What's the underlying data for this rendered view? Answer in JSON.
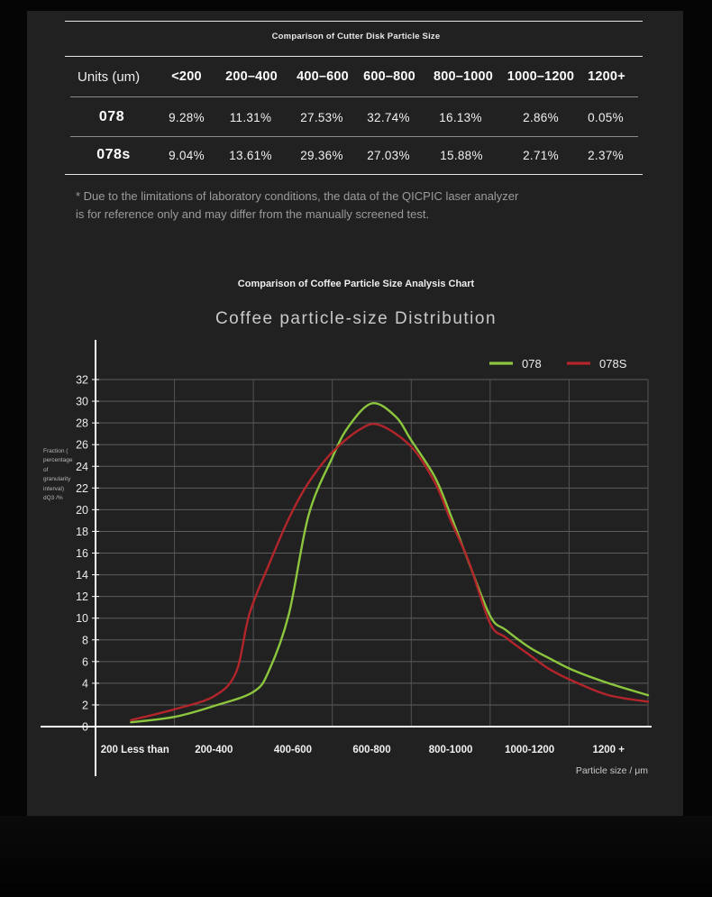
{
  "page": {
    "bg": "#050505",
    "panel_bg": "#212121"
  },
  "table": {
    "caption": "Comparison of Cutter Disk Particle Size",
    "header": [
      "Units (um)",
      "<200",
      "200–400",
      "400–600",
      "600–800",
      "800–1000",
      "1000–1200",
      "1200+"
    ],
    "rows": [
      {
        "label": "078",
        "values": [
          "9.28%",
          "11.31%",
          "27.53%",
          "32.74%",
          "16.13%",
          "2.86%",
          "0.05%"
        ]
      },
      {
        "label": "078s",
        "values": [
          "9.04%",
          "13.61%",
          "29.36%",
          "27.03%",
          "15.88%",
          "2.71%",
          "2.37%"
        ]
      }
    ],
    "footnote": "* Due to the limitations of laboratory conditions, the data of the QICPIC laser analyzer is for reference only and may differ from the manually screened test."
  },
  "chart": {
    "caption": "Comparison of Coffee Particle Size Analysis Chart",
    "title": "Coffee particle-size Distribution",
    "y_axis_note_lines": [
      "Fraction (",
      "percentage",
      "of",
      "granularity",
      "interval)",
      "dQ3 /%"
    ]
  },
  "chart_data": {
    "type": "line",
    "title": "Coffee particle-size Distribution",
    "xlabel": "Particle size / μm",
    "ylabel": "Fraction ( percentage of granularity interval) dQ3 /%",
    "categories": [
      "200 Less than",
      "200-400",
      "400-600",
      "600-800",
      "800-1000",
      "1000-1200",
      "1200 +"
    ],
    "ylim": [
      0,
      32
    ],
    "ytick_step": 2,
    "grid": true,
    "legend_position": "top-right",
    "axis_color": "#fafafa",
    "grid_color_h": "#5e5e5e",
    "grid_color_v": "#535353",
    "series": [
      {
        "name": "078",
        "color": "#8CC63E",
        "points": [
          [
            0.45,
            0.4
          ],
          [
            1.0,
            0.9
          ],
          [
            1.5,
            1.9
          ],
          [
            2.0,
            3.2
          ],
          [
            2.2,
            5.2
          ],
          [
            2.45,
            10.4
          ],
          [
            2.7,
            19.5
          ],
          [
            3.0,
            24.8
          ],
          [
            3.2,
            27.6
          ],
          [
            3.5,
            29.8
          ],
          [
            3.8,
            28.6
          ],
          [
            4.0,
            26.4
          ],
          [
            4.3,
            23.0
          ],
          [
            4.5,
            19.5
          ],
          [
            4.7,
            15.7
          ],
          [
            5.0,
            10.2
          ],
          [
            5.2,
            8.9
          ],
          [
            5.5,
            7.3
          ],
          [
            5.75,
            6.3
          ],
          [
            6.05,
            5.2
          ],
          [
            6.5,
            4.0
          ],
          [
            7.0,
            2.9
          ]
        ]
      },
      {
        "name": "078S",
        "color": "#B2252B",
        "points": [
          [
            0.45,
            0.6
          ],
          [
            1.0,
            1.6
          ],
          [
            1.5,
            2.8
          ],
          [
            1.78,
            5.0
          ],
          [
            1.95,
            10.4
          ],
          [
            2.2,
            15.0
          ],
          [
            2.45,
            19.2
          ],
          [
            2.7,
            22.5
          ],
          [
            3.0,
            25.3
          ],
          [
            3.35,
            27.4
          ],
          [
            3.6,
            27.8
          ],
          [
            4.0,
            25.8
          ],
          [
            4.3,
            22.5
          ],
          [
            4.5,
            19.0
          ],
          [
            4.73,
            15.2
          ],
          [
            5.0,
            9.5
          ],
          [
            5.2,
            8.2
          ],
          [
            5.5,
            6.6
          ],
          [
            5.75,
            5.3
          ],
          [
            6.05,
            4.2
          ],
          [
            6.5,
            2.9
          ],
          [
            7.0,
            2.3
          ]
        ]
      }
    ]
  }
}
